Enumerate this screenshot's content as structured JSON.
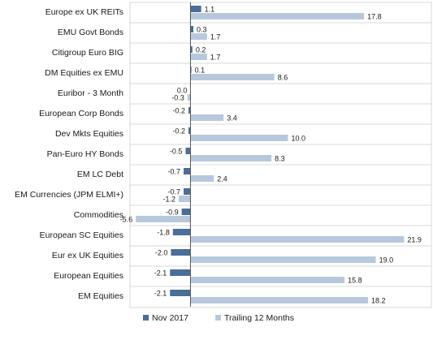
{
  "chart_data": {
    "type": "bar",
    "orientation": "horizontal",
    "title": "",
    "xlabel": "",
    "ylabel": "",
    "categories": [
      "Europe ex UK REITs",
      "EMU Govt Bonds",
      "Citigroup Euro BIG",
      "DM Equities ex EMU",
      "Euribor - 3 Month",
      "European Corp Bonds",
      "Dev Mkts Equities",
      "Pan-Euro HY Bonds",
      "EM LC Debt",
      "EM Currencies (JPM ELMI+)",
      "Commodities",
      "European SC Equities",
      "Eur ex UK Equities",
      "European Equities",
      "EM Equities"
    ],
    "series": [
      {
        "name": "Nov 2017",
        "color": "#4a6d99",
        "values": [
          1.1,
          0.3,
          0.2,
          0.1,
          0.0,
          -0.2,
          -0.2,
          -0.5,
          -0.7,
          -0.7,
          -0.9,
          -1.8,
          -2.0,
          -2.1,
          -2.1
        ],
        "labels": [
          "1.1",
          "0.3",
          "0.2",
          "0.1",
          "0.0",
          "-0.2",
          "-0.2",
          "-0.5",
          "-0.7",
          "-0.7",
          "-0.9",
          "-1.8",
          "-2.0",
          "-2.1",
          "-2.1"
        ]
      },
      {
        "name": "Trailing 12 Months",
        "color": "#b8c8dc",
        "values": [
          17.8,
          1.7,
          1.7,
          8.6,
          -0.3,
          3.4,
          10.0,
          8.3,
          2.4,
          -1.2,
          -5.6,
          21.9,
          19.0,
          15.8,
          18.2
        ],
        "labels": [
          "17.8",
          "1.7",
          "1.7",
          "8.6",
          "-0.3",
          "3.4",
          "10.0",
          "8.3",
          "2.4",
          "-1.2",
          "-5.6",
          "21.9",
          "19.0",
          "15.8",
          "18.2"
        ]
      }
    ],
    "xlim": [
      -6.2,
      24.7
    ],
    "grid": "horizontal separators",
    "legend_position": "bottom"
  }
}
